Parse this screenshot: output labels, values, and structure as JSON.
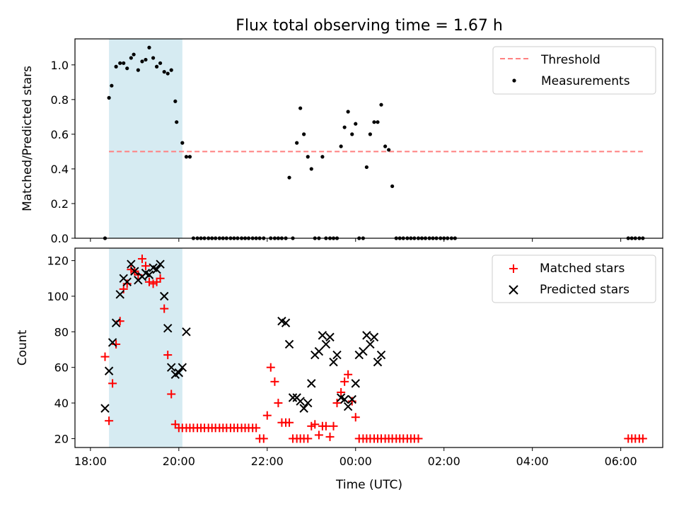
{
  "title": "Flux total observing time = 1.67 h",
  "chart_data": [
    {
      "type": "scatter",
      "ylabel": "Matched/Predicted stars",
      "xlim": [
        -0.35,
        12.95
      ],
      "ylim": [
        0,
        1.15
      ],
      "yticks": [
        0.0,
        0.2,
        0.4,
        0.6,
        0.8,
        1.0
      ],
      "ytick_labels": [
        "0.0",
        "0.2",
        "0.4",
        "0.6",
        "0.8",
        "1.0"
      ],
      "shaded_x": [
        0.42,
        2.08
      ],
      "shaded_color": "#add8e6",
      "threshold": {
        "name": "Threshold",
        "value": 0.5,
        "x": [
          0.42,
          12.5
        ],
        "color": "#ff8080"
      },
      "legend": {
        "position": "upper right",
        "entries": [
          "Threshold",
          "Measurements"
        ]
      },
      "series": [
        {
          "name": "Measurements",
          "color": "#000000",
          "marker": "dot",
          "x": [
            0.33,
            0.42,
            0.48,
            0.58,
            0.67,
            0.75,
            0.83,
            0.92,
            0.98,
            1.08,
            1.17,
            1.25,
            1.33,
            1.42,
            1.5,
            1.58,
            1.67,
            1.75,
            1.83,
            1.92,
            1.95,
            2.08,
            2.17,
            2.25,
            2.33,
            2.42,
            2.5,
            2.58,
            2.67,
            2.75,
            2.83,
            2.92,
            3.0,
            3.08,
            3.17,
            3.25,
            3.33,
            3.42,
            3.5,
            3.58,
            3.67,
            3.75,
            3.83,
            3.92,
            4.08,
            4.17,
            4.25,
            4.33,
            4.42,
            4.5,
            4.58,
            4.67,
            4.75,
            4.83,
            4.92,
            5.0,
            5.08,
            5.17,
            5.25,
            5.33,
            5.42,
            5.5,
            5.58,
            5.67,
            5.75,
            5.83,
            5.92,
            6.0,
            6.08,
            6.17,
            6.25,
            6.33,
            6.42,
            6.5,
            6.58,
            6.67,
            6.75,
            6.83,
            6.92,
            7.0,
            7.08,
            7.17,
            7.25,
            7.33,
            7.42,
            7.5,
            7.58,
            7.67,
            7.75,
            7.83,
            7.92,
            8.0,
            8.08,
            8.17,
            8.25,
            12.17,
            12.25,
            12.33,
            12.42,
            12.5
          ],
          "y": [
            0,
            0.81,
            0.88,
            0.99,
            1.01,
            1.01,
            0.98,
            1.04,
            1.06,
            0.97,
            1.02,
            1.03,
            1.1,
            1.04,
            0.99,
            1.01,
            0.96,
            0.95,
            0.97,
            0.79,
            0.67,
            0.55,
            0.47,
            0.47,
            0,
            0,
            0,
            0,
            0,
            0,
            0,
            0,
            0,
            0,
            0,
            0,
            0,
            0,
            0,
            0,
            0,
            0,
            0,
            0,
            0,
            0,
            0,
            0,
            0,
            0.35,
            0,
            0.55,
            0.75,
            0.6,
            0.47,
            0.4,
            0,
            0,
            0.47,
            0,
            0,
            0,
            0,
            0.53,
            0.64,
            0.73,
            0.6,
            0.66,
            0,
            0,
            0.41,
            0.6,
            0.67,
            0.67,
            0.77,
            0.53,
            0.51,
            0.3,
            0,
            0,
            0,
            0,
            0,
            0,
            0,
            0,
            0,
            0,
            0,
            0,
            0,
            0,
            0,
            0,
            0,
            0,
            0,
            0,
            0,
            0
          ]
        }
      ]
    },
    {
      "type": "scatter",
      "xlabel": "Time (UTC)",
      "ylabel": "Count",
      "xlim": [
        -0.35,
        12.95
      ],
      "ylim": [
        15,
        127
      ],
      "xticks": [
        0,
        2,
        4,
        6,
        8,
        10,
        12
      ],
      "xtick_labels": [
        "18:00",
        "20:00",
        "22:00",
        "00:00",
        "02:00",
        "04:00",
        "06:00"
      ],
      "yticks": [
        20,
        40,
        60,
        80,
        100,
        120
      ],
      "ytick_labels": [
        "20",
        "40",
        "60",
        "80",
        "100",
        "120"
      ],
      "shaded_x": [
        0.42,
        2.08
      ],
      "shaded_color": "#add8e6",
      "legend": {
        "position": "upper right",
        "entries": [
          "Matched stars",
          "Predicted stars"
        ]
      },
      "series": [
        {
          "name": "Matched stars",
          "color": "#ff0000",
          "marker": "plus",
          "x": [
            0.33,
            0.42,
            0.5,
            0.58,
            0.67,
            0.75,
            0.83,
            0.92,
            1.0,
            1.08,
            1.17,
            1.25,
            1.33,
            1.42,
            1.5,
            1.58,
            1.67,
            1.75,
            1.83,
            1.92,
            2.0,
            2.08,
            2.17,
            2.25,
            2.33,
            2.42,
            2.5,
            2.58,
            2.67,
            2.75,
            2.83,
            2.92,
            3.0,
            3.08,
            3.17,
            3.25,
            3.33,
            3.42,
            3.5,
            3.58,
            3.67,
            3.75,
            3.83,
            3.92,
            4.0,
            4.08,
            4.17,
            4.25,
            4.33,
            4.42,
            4.5,
            4.58,
            4.67,
            4.75,
            4.83,
            4.92,
            5.0,
            5.08,
            5.17,
            5.25,
            5.33,
            5.42,
            5.5,
            5.58,
            5.67,
            5.75,
            5.83,
            5.92,
            6.0,
            6.08,
            6.17,
            6.25,
            6.33,
            6.42,
            6.5,
            6.58,
            6.67,
            6.75,
            6.83,
            6.92,
            7.0,
            7.08,
            7.17,
            7.25,
            7.33,
            7.42,
            12.17,
            12.25,
            12.33,
            12.42,
            12.5
          ],
          "y": [
            66,
            30,
            51,
            73,
            86,
            104,
            107,
            115,
            114,
            112,
            121,
            117,
            108,
            107,
            108,
            110,
            93,
            67,
            45,
            28,
            26,
            26,
            26,
            26,
            26,
            26,
            26,
            26,
            26,
            26,
            26,
            26,
            26,
            26,
            26,
            26,
            26,
            26,
            26,
            26,
            26,
            26,
            20,
            20,
            33,
            60,
            52,
            40,
            29,
            29,
            29,
            20,
            20,
            20,
            20,
            20,
            27,
            28,
            22,
            27,
            27,
            21,
            27,
            40,
            46,
            52,
            56,
            41,
            32,
            20,
            20,
            20,
            20,
            20,
            20,
            20,
            20,
            20,
            20,
            20,
            20,
            20,
            20,
            20,
            20,
            20,
            20,
            20,
            20,
            20,
            20
          ]
        },
        {
          "name": "Predicted stars",
          "color": "#000000",
          "marker": "x",
          "x": [
            0.33,
            0.42,
            0.5,
            0.58,
            0.67,
            0.75,
            0.83,
            0.92,
            1.0,
            1.08,
            1.17,
            1.25,
            1.33,
            1.42,
            1.5,
            1.58,
            1.67,
            1.75,
            1.83,
            1.92,
            2.0,
            2.08,
            2.17,
            4.33,
            4.42,
            4.5,
            4.58,
            4.67,
            4.75,
            4.83,
            4.92,
            5.0,
            5.08,
            5.17,
            5.25,
            5.33,
            5.42,
            5.5,
            5.58,
            5.67,
            5.75,
            5.83,
            5.92,
            6.0,
            6.08,
            6.17,
            6.25,
            6.33,
            6.42,
            6.5,
            6.58
          ],
          "y": [
            37,
            58,
            74,
            85,
            101,
            110,
            108,
            118,
            114,
            109,
            111,
            113,
            112,
            116,
            115,
            118,
            100,
            82,
            60,
            56,
            57,
            60,
            80,
            86,
            85,
            73,
            43,
            43,
            41,
            37,
            40,
            51,
            67,
            69,
            78,
            73,
            77,
            63,
            67,
            43,
            42,
            38,
            42,
            51,
            67,
            69,
            78,
            73,
            77,
            63,
            67
          ]
        }
      ]
    }
  ]
}
